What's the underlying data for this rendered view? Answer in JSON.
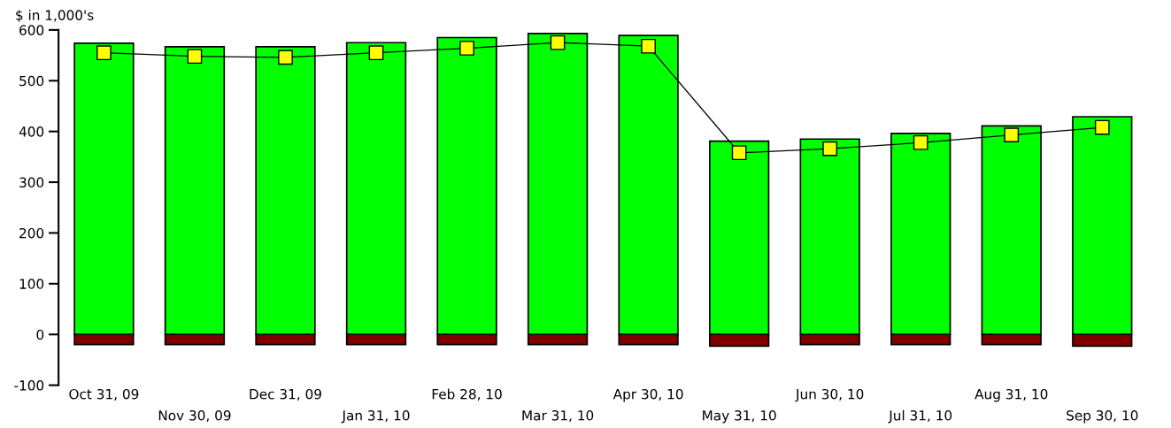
{
  "chart_data": {
    "type": "bar",
    "ylabel": "$ in 1,000's",
    "categories": [
      "Oct 31, 09",
      "Nov 30, 09",
      "Dec 31, 09",
      "Jan 31, 10",
      "Feb 28, 10",
      "Mar 31, 10",
      "Apr 30, 10",
      "May 31, 10",
      "Jun 30, 10",
      "Jul 31, 10",
      "Aug 31, 10",
      "Sep 30, 10"
    ],
    "series": [
      {
        "color": "#00ff00",
        "values": [
          574,
          567,
          567,
          575,
          585,
          593,
          589,
          381,
          385,
          396,
          411,
          429
        ]
      },
      {
        "color": "#800000",
        "values": [
          -20,
          -20,
          -20,
          -20,
          -20,
          -20,
          -20,
          -23,
          -20,
          -20,
          -20,
          -23
        ]
      },
      {
        "type": "line",
        "color": "#ffff00",
        "marker": "square",
        "values": [
          555,
          548,
          546,
          555,
          564,
          575,
          568,
          358,
          366,
          378,
          393,
          408
        ]
      }
    ],
    "ylim": [
      -100,
      600
    ],
    "yticks": [
      -100,
      0,
      100,
      200,
      300,
      400,
      500,
      600
    ],
    "stacked": true,
    "grid": false
  }
}
